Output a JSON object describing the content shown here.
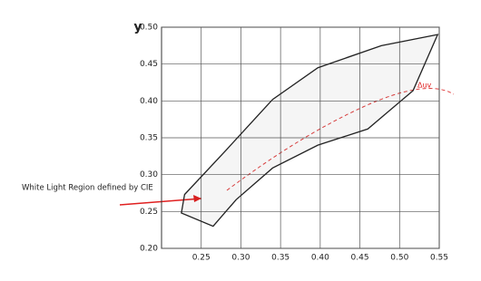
{
  "chart_data": {
    "type": "area",
    "axis_label_y": "y",
    "annotation": "White Light Region defined by CIE",
    "annotation_delta": "Δuv",
    "region": {
      "color": "#222222",
      "x": [
        0.229,
        0.282,
        0.34,
        0.397,
        0.477,
        0.548,
        0.517,
        0.46,
        0.397,
        0.34,
        0.294,
        0.265,
        0.225
      ],
      "y": [
        0.273,
        0.334,
        0.402,
        0.445,
        0.475,
        0.49,
        0.414,
        0.362,
        0.34,
        0.309,
        0.266,
        0.23,
        0.248
      ]
    },
    "xlim": [
      0.2,
      0.55
    ],
    "ylim": [
      0.2,
      0.5
    ],
    "xticks": [
      0.25,
      {
        "value": 0.3,
        "label": "0.30"
      },
      0.35,
      {
        "value": 0.4,
        "label": "0.40"
      },
      0.45,
      {
        "value": 0.5,
        "label": "0.50"
      },
      0.55
    ],
    "yticks": [
      {
        "value": 0.2,
        "label": "0.20"
      },
      0.25,
      {
        "value": 0.3,
        "label": "0.30"
      },
      0.35,
      {
        "value": 0.4,
        "label": "0.40"
      },
      0.45,
      {
        "value": 0.5,
        "label": "0.50"
      }
    ],
    "grid": true
  }
}
